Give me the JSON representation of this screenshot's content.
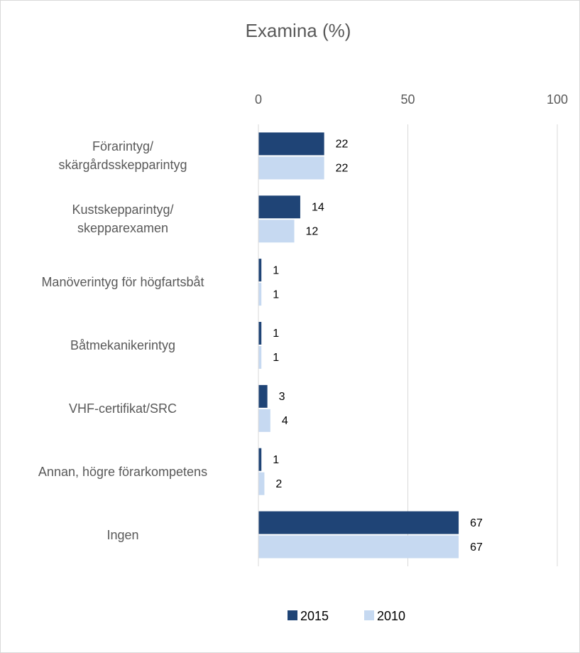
{
  "chart_data": {
    "type": "barh",
    "title": "Examina (%)",
    "categories": [
      "Förarintyg/\nskärgårdsskepparintyg",
      "Kustskepparintyg/\nskepparexamen",
      "Manöverintyg för högfartsbåt",
      "Båtmekanikerintyg",
      "VHF-certifikat/SRC",
      "Annan, högre förarkompetens",
      "Ingen"
    ],
    "series": [
      {
        "name": "2015",
        "color": "#1f4476",
        "values": [
          22,
          14,
          1,
          1,
          3,
          1,
          67
        ]
      },
      {
        "name": "2010",
        "color": "#c6d9f1",
        "values": [
          22,
          12,
          1,
          1,
          4,
          2,
          67
        ]
      }
    ],
    "xlim": [
      0,
      100
    ],
    "xticks": [
      0,
      50,
      100
    ],
    "grid": true,
    "legend": "bottom"
  }
}
